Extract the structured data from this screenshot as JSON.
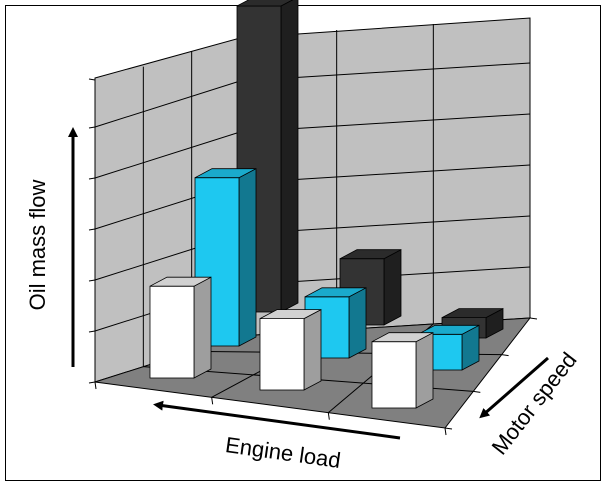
{
  "chart_data": {
    "type": "bar",
    "subtype": "3d-column",
    "title": "",
    "ylabel": "Oil mass flow",
    "xlabel": "Engine load",
    "zlabel": "Motor speed",
    "tick_labels_shown": false,
    "ylim": [
      0,
      6
    ],
    "grid": true,
    "legend": "none",
    "depth_rows": [
      {
        "color": "#ffffff",
        "values": [
          1.8,
          1.4,
          1.3
        ]
      },
      {
        "color": "#1ec8f0",
        "values": [
          3.3,
          1.2,
          0.7
        ]
      },
      {
        "color": "#333333",
        "values": [
          6.0,
          1.3,
          0.4
        ]
      }
    ]
  }
}
